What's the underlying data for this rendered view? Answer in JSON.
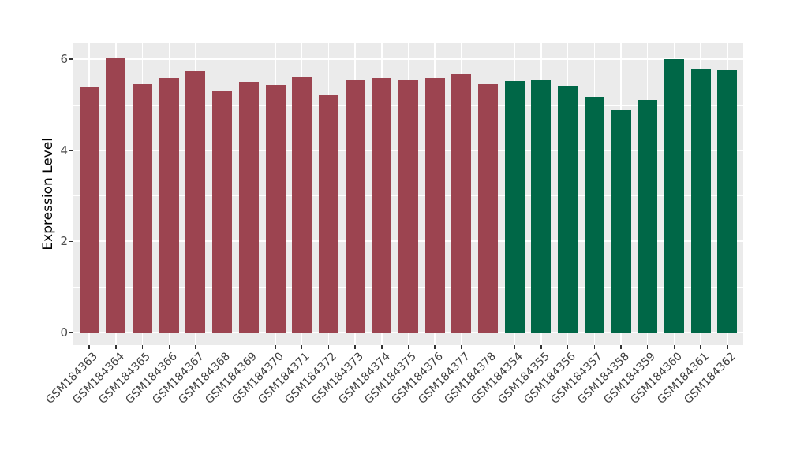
{
  "colors": {
    "panel_bg": "#EBEBEB",
    "grid": "#FFFFFF",
    "tick": "#333333",
    "axis_text": "#4d4d4d",
    "group1_bar": "#9C4450",
    "group2_bar": "#006747",
    "background": "#FFFFFF"
  },
  "chart_data": {
    "type": "bar",
    "title": "",
    "xlabel": "",
    "ylabel": "Expression Level",
    "ylim": [
      -0.28,
      6.35
    ],
    "yticks": [
      0,
      2,
      4,
      6
    ],
    "yticks_minor": [
      1,
      3,
      5
    ],
    "grid": true,
    "legend": false,
    "x_tick_rotation": 45,
    "categories": [
      "GSM184363",
      "GSM184364",
      "GSM184365",
      "GSM184366",
      "GSM184367",
      "GSM184368",
      "GSM184369",
      "GSM184370",
      "GSM184371",
      "GSM184372",
      "GSM184373",
      "GSM184374",
      "GSM184375",
      "GSM184376",
      "GSM184377",
      "GSM184378",
      "GSM184354",
      "GSM184355",
      "GSM184356",
      "GSM184357",
      "GSM184358",
      "GSM184359",
      "GSM184360",
      "GSM184361",
      "GSM184362"
    ],
    "values": [
      5.4,
      6.03,
      5.45,
      5.59,
      5.74,
      5.32,
      5.51,
      5.43,
      5.6,
      5.2,
      5.55,
      5.59,
      5.54,
      5.59,
      5.68,
      5.45,
      5.52,
      5.53,
      5.41,
      5.18,
      4.88,
      5.1,
      6.0,
      5.79,
      5.76
    ],
    "bar_colors": [
      "#9C4450",
      "#9C4450",
      "#9C4450",
      "#9C4450",
      "#9C4450",
      "#9C4450",
      "#9C4450",
      "#9C4450",
      "#9C4450",
      "#9C4450",
      "#9C4450",
      "#9C4450",
      "#9C4450",
      "#9C4450",
      "#9C4450",
      "#9C4450",
      "#006747",
      "#006747",
      "#006747",
      "#006747",
      "#006747",
      "#006747",
      "#006747",
      "#006747",
      "#006747"
    ]
  }
}
